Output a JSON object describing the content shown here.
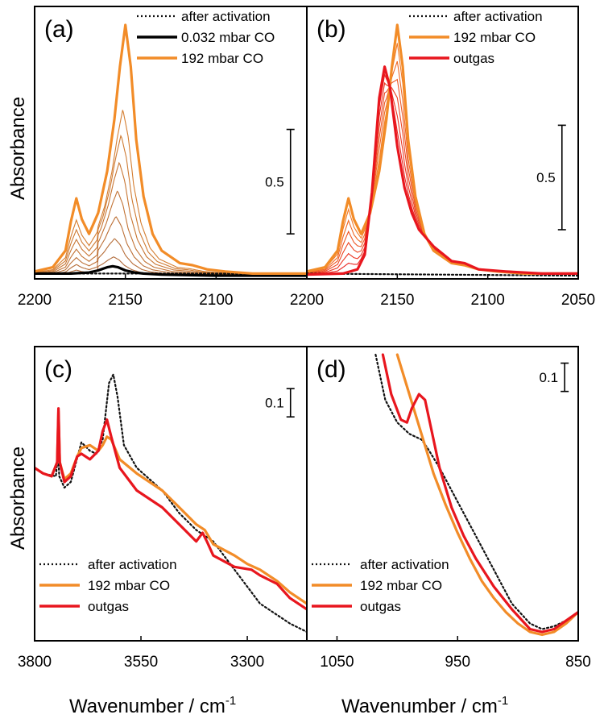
{
  "figure": {
    "ylabel": "Absorbance",
    "xlabel": "Wavenumber / cm",
    "xlabel_sup": "-1",
    "colors": {
      "after_activation": "#111111",
      "low_pressure": "#000000",
      "co_192": "#f28c28",
      "outgas": "#e8161e",
      "intermediate": "#b06a3a"
    }
  },
  "chart_data": [
    {
      "id": "a",
      "type": "line",
      "panel_label": "(a)",
      "xlim": [
        2200,
        2050
      ],
      "ylim": [
        0,
        1.25
      ],
      "xticks": [
        2200,
        2150,
        2100
      ],
      "xtick_labels": [
        "2200",
        "2150",
        "2100"
      ],
      "scale_bar": {
        "label": "0.5",
        "value": 0.5,
        "from": 0.2
      },
      "legend": [
        "after activation",
        "0.032 mbar CO",
        "192 mbar CO"
      ],
      "series": [
        {
          "name": "after activation",
          "style": "dotted",
          "color": "#111111",
          "x": [
            2200,
            2050
          ],
          "y": [
            0.01,
            0.01
          ]
        },
        {
          "name": "0.032 mbar CO",
          "style": "solid",
          "color": "#000000",
          "x": [
            2200,
            2180,
            2170,
            2165,
            2160,
            2157,
            2154,
            2150,
            2145,
            2140,
            2130,
            2100,
            2050
          ],
          "y": [
            0.01,
            0.01,
            0.015,
            0.025,
            0.04,
            0.045,
            0.04,
            0.025,
            0.015,
            0.01,
            0.005,
            0.0,
            0.0
          ]
        },
        {
          "name": "192 mbar CO",
          "style": "solid",
          "color": "#f28c28",
          "x": [
            2200,
            2190,
            2183,
            2180,
            2177,
            2174,
            2170,
            2165,
            2160,
            2156,
            2153,
            2150,
            2147,
            2144,
            2140,
            2135,
            2130,
            2120,
            2113,
            2105,
            2095,
            2080,
            2065,
            2050
          ],
          "y": [
            0.02,
            0.04,
            0.12,
            0.26,
            0.37,
            0.27,
            0.2,
            0.3,
            0.5,
            0.75,
            1.0,
            1.2,
            1.0,
            0.65,
            0.38,
            0.2,
            0.12,
            0.06,
            0.05,
            0.03,
            0.02,
            0.01,
            0.01,
            0.01
          ]
        }
      ]
    },
    {
      "id": "b",
      "type": "line",
      "panel_label": "(b)",
      "xlim": [
        2200,
        2050
      ],
      "ylim": [
        0,
        1.25
      ],
      "xticks": [
        2200,
        2150,
        2100,
        2050
      ],
      "xtick_labels": [
        "2200",
        "2150",
        "2100",
        "2050"
      ],
      "scale_bar": {
        "label": "0.5",
        "value": 0.5,
        "from": 0.22
      },
      "legend": [
        "after activation",
        "192 mbar CO",
        "outgas"
      ],
      "series": [
        {
          "name": "after activation",
          "style": "dotted",
          "color": "#111111",
          "x": [
            2200,
            2050
          ],
          "y": [
            0.01,
            0.0
          ]
        },
        {
          "name": "192 mbar CO",
          "style": "solid",
          "color": "#f28c28",
          "x": [
            2200,
            2190,
            2183,
            2180,
            2177,
            2174,
            2170,
            2165,
            2160,
            2156,
            2153,
            2150,
            2147,
            2144,
            2140,
            2135,
            2130,
            2120,
            2113,
            2105,
            2095,
            2080,
            2065,
            2050
          ],
          "y": [
            0.02,
            0.04,
            0.12,
            0.26,
            0.37,
            0.27,
            0.2,
            0.3,
            0.5,
            0.75,
            1.0,
            1.2,
            1.0,
            0.65,
            0.38,
            0.2,
            0.12,
            0.06,
            0.05,
            0.03,
            0.02,
            0.01,
            0.01,
            0.01
          ]
        },
        {
          "name": "outgas",
          "style": "solid",
          "color": "#e8161e",
          "x": [
            2200,
            2180,
            2172,
            2168,
            2164,
            2160,
            2157,
            2154,
            2150,
            2146,
            2142,
            2138,
            2130,
            2120,
            2113,
            2105,
            2090,
            2070,
            2050
          ],
          "y": [
            0.005,
            0.01,
            0.03,
            0.1,
            0.4,
            0.85,
            1.0,
            0.9,
            0.62,
            0.42,
            0.3,
            0.22,
            0.14,
            0.07,
            0.06,
            0.03,
            0.02,
            0.01,
            0.01
          ]
        }
      ]
    },
    {
      "id": "c",
      "type": "line",
      "panel_label": "(c)",
      "xlim": [
        3800,
        3160
      ],
      "ylim": [
        0,
        1
      ],
      "xticks": [
        3800,
        3550,
        3300
      ],
      "xtick_labels": [
        "3800",
        "3550",
        "3300"
      ],
      "scale_bar": {
        "label": "0.1",
        "value": 0.1,
        "from": 0.78
      },
      "legend": [
        "after activation",
        "192 mbar CO",
        "outgas"
      ],
      "series": [
        {
          "name": "after activation",
          "style": "dotted",
          "color": "#111111",
          "x": [
            3800,
            3780,
            3750,
            3745,
            3742,
            3730,
            3715,
            3690,
            3670,
            3655,
            3640,
            3625,
            3615,
            3605,
            3590,
            3560,
            3500,
            3460,
            3420,
            3380,
            3330,
            3290,
            3270,
            3230,
            3200,
            3160
          ],
          "y": [
            0.6,
            0.58,
            0.57,
            0.65,
            0.57,
            0.53,
            0.55,
            0.69,
            0.66,
            0.65,
            0.7,
            0.9,
            0.93,
            0.85,
            0.68,
            0.6,
            0.52,
            0.44,
            0.38,
            0.34,
            0.24,
            0.16,
            0.12,
            0.08,
            0.05,
            0.02
          ]
        },
        {
          "name": "192 mbar CO",
          "style": "solid",
          "color": "#f28c28",
          "x": [
            3800,
            3780,
            3760,
            3747,
            3744,
            3741,
            3730,
            3715,
            3700,
            3690,
            3670,
            3650,
            3640,
            3630,
            3620,
            3600,
            3560,
            3500,
            3460,
            3420,
            3400,
            3380,
            3330,
            3300,
            3270,
            3230,
            3200,
            3160
          ],
          "y": [
            0.6,
            0.58,
            0.57,
            0.62,
            0.8,
            0.62,
            0.56,
            0.58,
            0.64,
            0.67,
            0.68,
            0.66,
            0.68,
            0.71,
            0.7,
            0.63,
            0.58,
            0.52,
            0.46,
            0.4,
            0.38,
            0.33,
            0.29,
            0.26,
            0.24,
            0.2,
            0.16,
            0.12
          ]
        },
        {
          "name": "outgas",
          "style": "solid",
          "color": "#e8161e",
          "x": [
            3800,
            3780,
            3760,
            3747,
            3744,
            3741,
            3730,
            3715,
            3700,
            3690,
            3670,
            3650,
            3640,
            3630,
            3620,
            3600,
            3560,
            3500,
            3460,
            3420,
            3405,
            3395,
            3380,
            3330,
            3290,
            3270,
            3230,
            3200,
            3160
          ],
          "y": [
            0.6,
            0.58,
            0.57,
            0.62,
            0.81,
            0.62,
            0.55,
            0.57,
            0.64,
            0.65,
            0.63,
            0.66,
            0.73,
            0.77,
            0.71,
            0.6,
            0.52,
            0.46,
            0.4,
            0.34,
            0.37,
            0.34,
            0.29,
            0.25,
            0.24,
            0.22,
            0.19,
            0.14,
            0.1
          ]
        }
      ]
    },
    {
      "id": "d",
      "type": "line",
      "panel_label": "(d)",
      "xlim": [
        1075,
        850
      ],
      "ylim": [
        0,
        1
      ],
      "xticks": [
        1050,
        950,
        850
      ],
      "xtick_labels": [
        "1050",
        "950",
        "850"
      ],
      "scale_bar": {
        "label": "0.1",
        "value": 0.1,
        "from": 0.87
      },
      "legend": [
        "after activation",
        "192 mbar CO",
        "outgas"
      ],
      "series": [
        {
          "name": "after activation",
          "style": "dotted",
          "color": "#111111",
          "x": [
            1018,
            1010,
            1000,
            990,
            980,
            975,
            965,
            950,
            935,
            920,
            905,
            890,
            880,
            870,
            860,
            850
          ],
          "y": [
            1.0,
            0.84,
            0.76,
            0.72,
            0.7,
            0.67,
            0.6,
            0.48,
            0.36,
            0.24,
            0.12,
            0.05,
            0.03,
            0.04,
            0.06,
            0.09
          ]
        },
        {
          "name": "192 mbar CO",
          "style": "solid",
          "color": "#f28c28",
          "x": [
            1000,
            990,
            980,
            970,
            960,
            950,
            940,
            930,
            920,
            910,
            900,
            890,
            880,
            870,
            860,
            850
          ],
          "y": [
            1.0,
            0.86,
            0.72,
            0.58,
            0.47,
            0.37,
            0.28,
            0.2,
            0.14,
            0.09,
            0.05,
            0.02,
            0.01,
            0.02,
            0.05,
            0.09
          ]
        },
        {
          "name": "outgas",
          "style": "solid",
          "color": "#e8161e",
          "x": [
            1012,
            1005,
            997,
            992,
            988,
            982,
            977,
            972,
            965,
            955,
            945,
            935,
            920,
            905,
            890,
            880,
            870,
            860,
            850
          ],
          "y": [
            1.0,
            0.86,
            0.77,
            0.76,
            0.81,
            0.86,
            0.84,
            0.74,
            0.6,
            0.46,
            0.36,
            0.28,
            0.18,
            0.1,
            0.03,
            0.02,
            0.03,
            0.06,
            0.09
          ]
        }
      ]
    }
  ]
}
